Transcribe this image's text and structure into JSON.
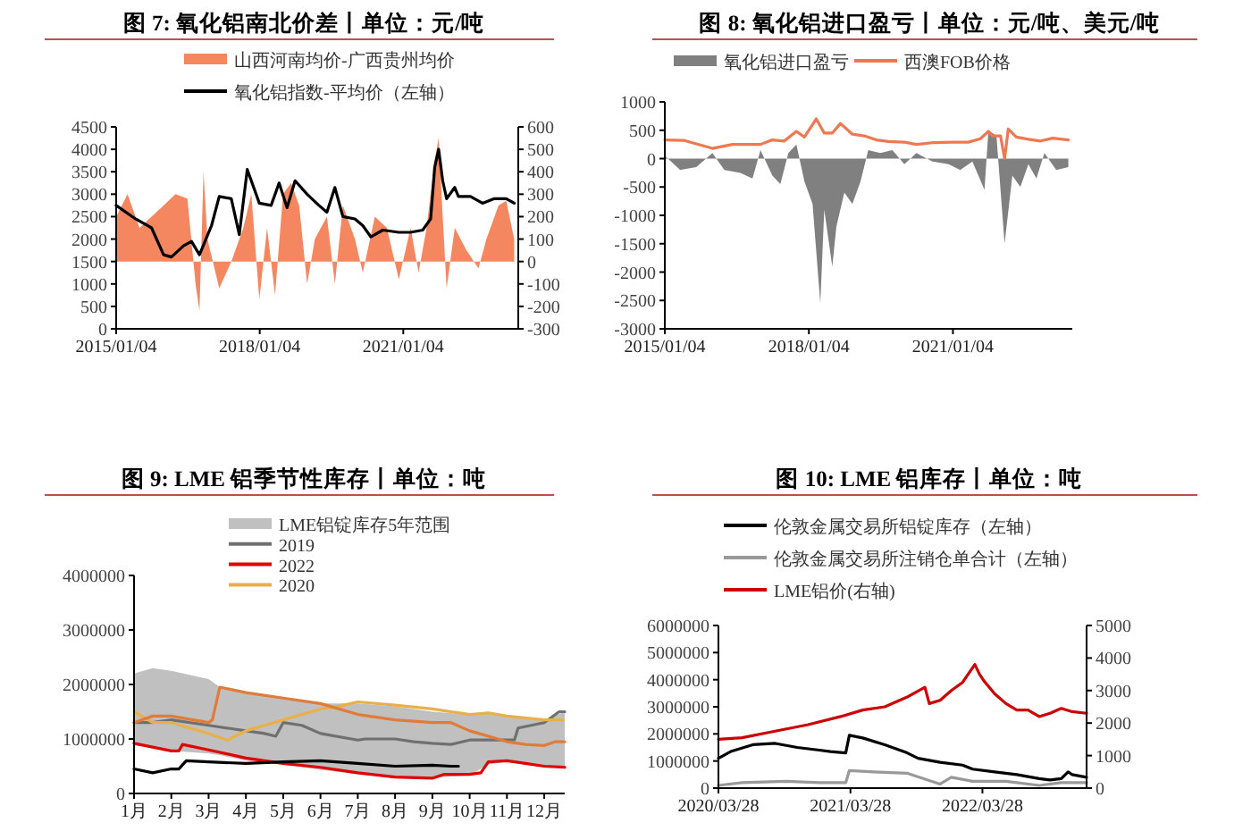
{
  "chart_data": [
    {
      "type": "line",
      "title": "图 7: 氧化铝南北价差丨单位：元/吨",
      "legend": "top",
      "xlim": [
        "2015-01-04",
        "2023-06-01"
      ],
      "xticks": [
        {
          "value": "2015-01-04",
          "label": "2015/01/04"
        },
        {
          "value": "2018-01-04",
          "label": "2018/01/04"
        },
        {
          "value": "2021-01-04",
          "label": "2021/01/04"
        }
      ],
      "ylim": [
        0,
        4500
      ],
      "yticks": [
        0,
        500,
        1000,
        1500,
        2000,
        2500,
        3000,
        3500,
        4000,
        4500
      ],
      "y2lim": [
        -300,
        600
      ],
      "y2ticks": [
        -300,
        -200,
        -100,
        0,
        100,
        200,
        300,
        400,
        500,
        600
      ],
      "series": [
        {
          "name": "山西河南均价-广西贵州均价",
          "type": "area",
          "axis": "y2",
          "color": "#f4875f",
          "x": [
            "2015-01-04",
            "2015-04",
            "2015-07",
            "2015-10",
            "2016-01",
            "2016-04",
            "2016-07",
            "2016-09",
            "2016-10",
            "2016-11",
            "2016-12",
            "2017-03",
            "2017-06",
            "2017-09",
            "2017-11",
            "2018-01",
            "2018-03",
            "2018-05",
            "2018-07",
            "2018-09",
            "2018-11",
            "2019-01",
            "2019-03",
            "2019-06",
            "2019-08",
            "2019-10",
            "2020-01",
            "2020-03",
            "2020-06",
            "2020-09",
            "2020-12",
            "2021-03",
            "2021-05",
            "2021-07",
            "2021-09",
            "2021-10",
            "2021-11",
            "2021-12",
            "2022-02",
            "2022-05",
            "2022-08",
            "2022-10",
            "2023-01",
            "2023-03",
            "2023-05"
          ],
          "values": [
            200,
            300,
            150,
            200,
            250,
            300,
            280,
            -100,
            -220,
            400,
            100,
            -120,
            0,
            150,
            300,
            -170,
            150,
            -150,
            300,
            350,
            250,
            -100,
            100,
            200,
            -100,
            250,
            100,
            -50,
            200,
            150,
            -80,
            150,
            -50,
            150,
            450,
            550,
            200,
            -120,
            150,
            50,
            -30,
            100,
            250,
            270,
            100
          ]
        },
        {
          "name": "氧化铝指数-平均价（左轴）",
          "type": "line",
          "color": "#000000",
          "x": [
            "2015-01-04",
            "2015-06",
            "2015-10",
            "2016-01",
            "2016-03",
            "2016-06",
            "2016-08",
            "2016-10",
            "2017-01",
            "2017-03",
            "2017-06",
            "2017-08",
            "2017-10",
            "2018-01",
            "2018-04",
            "2018-06",
            "2018-08",
            "2018-10",
            "2019-01",
            "2019-04",
            "2019-06",
            "2019-08",
            "2019-10",
            "2020-01",
            "2020-03",
            "2020-05",
            "2020-08",
            "2020-12",
            "2021-03",
            "2021-06",
            "2021-08",
            "2021-09",
            "2021-10",
            "2021-11",
            "2021-12",
            "2022-02",
            "2022-03",
            "2022-06",
            "2022-09",
            "2022-12",
            "2023-03",
            "2023-05"
          ],
          "values": [
            2750,
            2450,
            2250,
            1650,
            1600,
            1850,
            1950,
            1650,
            2300,
            2950,
            2900,
            2100,
            3550,
            2800,
            2750,
            3250,
            2700,
            3300,
            3000,
            2750,
            2600,
            3150,
            2500,
            2450,
            2300,
            2050,
            2200,
            2150,
            2150,
            2200,
            2450,
            3600,
            4000,
            3300,
            2900,
            3150,
            2950,
            2950,
            2800,
            2900,
            2900,
            2800
          ]
        }
      ]
    },
    {
      "type": "line",
      "title": "图 8: 氧化铝进口盈亏丨单位：元/吨、美元/吨",
      "legend": "top",
      "xlim": [
        "2015-01-04",
        "2023-07-01"
      ],
      "xticks": [
        {
          "value": "2015-01-04",
          "label": "2015/01/04"
        },
        {
          "value": "2018-01-04",
          "label": "2018/01/04"
        },
        {
          "value": "2021-01-04",
          "label": "2021/01/04"
        }
      ],
      "ylim": [
        -3000,
        1000
      ],
      "yticks": [
        -3000,
        -2500,
        -2000,
        -1500,
        -1000,
        -500,
        0,
        500,
        1000
      ],
      "series": [
        {
          "name": "氧化铝进口盈亏",
          "type": "area",
          "color": "#808080",
          "x": [
            "2015-01-04",
            "2015-05",
            "2015-09",
            "2016-01",
            "2016-04",
            "2016-08",
            "2016-11",
            "2017-01",
            "2017-04",
            "2017-06",
            "2017-08",
            "2017-10",
            "2017-12",
            "2018-02",
            "2018-04",
            "2018-05",
            "2018-07",
            "2018-08",
            "2018-10",
            "2018-12",
            "2019-02",
            "2019-04",
            "2019-07",
            "2019-10",
            "2020-01",
            "2020-04",
            "2020-08",
            "2020-12",
            "2021-03",
            "2021-06",
            "2021-09",
            "2021-10",
            "2021-12",
            "2022-02",
            "2022-04",
            "2022-06",
            "2022-08",
            "2022-10",
            "2022-12",
            "2023-03",
            "2023-06"
          ],
          "values": [
            50,
            -200,
            -150,
            100,
            -200,
            -250,
            -350,
            150,
            -300,
            -450,
            100,
            250,
            -400,
            -800,
            -2550,
            -900,
            -1900,
            -1200,
            -600,
            -800,
            -400,
            150,
            100,
            150,
            -100,
            100,
            -50,
            -100,
            -200,
            -50,
            -550,
            500,
            400,
            -1500,
            -300,
            -500,
            -100,
            -350,
            100,
            -200,
            -150
          ]
        },
        {
          "name": "西澳FOB价格",
          "type": "line",
          "color": "#f07850",
          "x": [
            "2015-01-04",
            "2015-06",
            "2016-01",
            "2016-06",
            "2017-01",
            "2017-04",
            "2017-07",
            "2017-10",
            "2017-12",
            "2018-03",
            "2018-05",
            "2018-07",
            "2018-09",
            "2018-12",
            "2019-03",
            "2019-06",
            "2019-09",
            "2020-01",
            "2020-04",
            "2020-08",
            "2021-01",
            "2021-05",
            "2021-08",
            "2021-10",
            "2021-11",
            "2022-01",
            "2022-02",
            "2022-03",
            "2022-05",
            "2022-08",
            "2022-11",
            "2023-02",
            "2023-06"
          ],
          "values": [
            330,
            320,
            180,
            250,
            250,
            330,
            310,
            480,
            380,
            700,
            450,
            450,
            620,
            430,
            400,
            330,
            300,
            290,
            250,
            280,
            290,
            290,
            350,
            480,
            400,
            400,
            0,
            520,
            380,
            340,
            310,
            360,
            330
          ]
        }
      ]
    },
    {
      "type": "line",
      "title": "图 9: LME 铝季节性库存丨单位：吨",
      "legend": "top",
      "xlim": [
        1,
        12.55
      ],
      "xticks": [
        {
          "value": 1,
          "label": "1月"
        },
        {
          "value": 2,
          "label": "2月"
        },
        {
          "value": 3,
          "label": "3月"
        },
        {
          "value": 4,
          "label": "4月"
        },
        {
          "value": 5,
          "label": "5月"
        },
        {
          "value": 6,
          "label": "6月"
        },
        {
          "value": 7,
          "label": "7月"
        },
        {
          "value": 8,
          "label": "8月"
        },
        {
          "value": 9,
          "label": "9月"
        },
        {
          "value": 10,
          "label": "10月"
        },
        {
          "value": 11,
          "label": "11月"
        },
        {
          "value": 12,
          "label": "12月"
        }
      ],
      "ylim": [
        0,
        4000000
      ],
      "yticks": [
        0,
        1000000,
        2000000,
        3000000,
        4000000
      ],
      "series": [
        {
          "name": "LME铝锭库存5年范围",
          "type": "area",
          "color": "#c0c0c0",
          "x": [
            1,
            1.5,
            2,
            3,
            3.3,
            4,
            5,
            6,
            7,
            8,
            9,
            10,
            10.5,
            11,
            12,
            12.55
          ],
          "values": [
            null,
            null,
            null,
            null,
            null,
            null,
            null,
            null,
            null,
            null,
            null,
            null,
            null,
            null,
            null,
            null
          ],
          "upper": [
            2200000,
            2300000,
            2250000,
            2100000,
            1950000,
            1850000,
            1750000,
            1650000,
            1650000,
            1600000,
            1500000,
            1450000,
            1480000,
            1400000,
            1350000,
            1500000
          ],
          "lower": [
            900000,
            850000,
            800000,
            750000,
            720000,
            620000,
            550000,
            450000,
            370000,
            300000,
            300000,
            350000,
            550000,
            600000,
            500000,
            500000
          ]
        },
        {
          "name": "2019",
          "color": "#707070",
          "x": [
            1,
            1.5,
            2,
            3,
            4,
            4.5,
            4.8,
            5,
            5.5,
            6,
            7,
            7.2,
            8,
            8.5,
            9,
            9.5,
            10,
            11,
            11.2,
            11.3,
            12,
            12.4,
            12.55
          ],
          "values": [
            1300000,
            1300000,
            1350000,
            1250000,
            1150000,
            1100000,
            1050000,
            1300000,
            1250000,
            1100000,
            980000,
            1000000,
            1000000,
            950000,
            920000,
            900000,
            980000,
            980000,
            980000,
            1200000,
            1300000,
            1500000,
            1500000
          ]
        },
        {
          "name": "2022",
          "color": "#e00000",
          "x": [
            1,
            2,
            2.2,
            2.3,
            3,
            4,
            5,
            6,
            7,
            8,
            9,
            9.3,
            10,
            10.3,
            10.5,
            11,
            11.5,
            12,
            12.55
          ],
          "values": [
            920000,
            780000,
            780000,
            900000,
            800000,
            650000,
            550000,
            480000,
            380000,
            300000,
            280000,
            350000,
            350000,
            380000,
            580000,
            600000,
            550000,
            500000,
            480000
          ]
        },
        {
          "name": "2020",
          "color": "#e8b04a",
          "x": [
            1,
            1.5,
            2,
            3,
            3.5,
            4,
            5,
            6,
            6.5,
            7,
            8,
            9,
            10,
            10.5,
            11,
            12,
            12.5
          ],
          "values": [
            1500000,
            1300000,
            1300000,
            1100000,
            980000,
            1150000,
            1350000,
            1550000,
            1600000,
            1680000,
            1620000,
            1550000,
            1450000,
            1480000,
            1420000,
            1350000,
            1350000
          ]
        },
        {
          "color": "#e07b39",
          "x": [
            1,
            1.5,
            2,
            3,
            3.1,
            3.3,
            4,
            5,
            6,
            7,
            8,
            9,
            9.5,
            10,
            11,
            11.5,
            12,
            12.3,
            12.55
          ],
          "values": [
            1300000,
            1420000,
            1420000,
            1300000,
            1350000,
            1950000,
            1850000,
            1750000,
            1650000,
            1450000,
            1350000,
            1300000,
            1300000,
            1150000,
            950000,
            900000,
            880000,
            950000,
            950000
          ]
        },
        {
          "color": "#000000",
          "x": [
            1,
            1.5,
            2,
            2.2,
            2.4,
            3,
            4,
            5,
            6,
            7,
            8,
            9,
            9.5,
            9.7
          ],
          "values": [
            450000,
            380000,
            450000,
            450000,
            600000,
            580000,
            550000,
            580000,
            600000,
            550000,
            500000,
            520000,
            500000,
            500000
          ]
        }
      ]
    },
    {
      "type": "line",
      "title": "图 10: LME 铝库存丨单位：吨",
      "legend": "top",
      "xlim": [
        "2020-03-28",
        "2023-01-10"
      ],
      "xticks": [
        {
          "value": "2020-03-28",
          "label": "2020/03/28"
        },
        {
          "value": "2021-03-28",
          "label": "2021/03/28"
        },
        {
          "value": "2022-03-28",
          "label": "2022/03/28"
        }
      ],
      "ylim": [
        0,
        6000000
      ],
      "yticks": [
        0,
        1000000,
        2000000,
        3000000,
        4000000,
        5000000,
        6000000
      ],
      "y2lim": [
        0,
        5000
      ],
      "y2ticks": [
        0,
        1000,
        2000,
        3000,
        4000,
        5000
      ],
      "series": [
        {
          "name": "伦敦金属交易所铝锭库存（左轴）",
          "color": "#000000",
          "x": [
            "2020-03-28",
            "2020-05-01",
            "2020-07-01",
            "2020-09-01",
            "2020-11-01",
            "2021-01-01",
            "2021-02-01",
            "2021-03-15",
            "2021-03-25",
            "2021-05-01",
            "2021-07-01",
            "2021-09-01",
            "2021-10-01",
            "2021-12-01",
            "2022-02-01",
            "2022-03-01",
            "2022-05-01",
            "2022-07-01",
            "2022-09-01",
            "2022-10-01",
            "2022-11-01",
            "2022-11-20",
            "2022-12-01",
            "2023-01-10"
          ],
          "values": [
            1100000,
            1350000,
            1600000,
            1650000,
            1500000,
            1400000,
            1350000,
            1300000,
            1950000,
            1850000,
            1600000,
            1300000,
            1100000,
            950000,
            850000,
            700000,
            600000,
            500000,
            350000,
            300000,
            350000,
            600000,
            500000,
            400000
          ]
        },
        {
          "name": "伦敦金属交易所注销仓单合计（左轴）",
          "color": "#999999",
          "x": [
            "2020-03-28",
            "2020-06-01",
            "2020-10-01",
            "2021-01-01",
            "2021-03-15",
            "2021-03-25",
            "2021-06-01",
            "2021-09-01",
            "2021-12-01",
            "2022-01-01",
            "2022-03-01",
            "2022-06-01",
            "2022-09-01",
            "2022-11-01",
            "2023-01-10"
          ],
          "values": [
            100000,
            200000,
            250000,
            200000,
            200000,
            650000,
            600000,
            550000,
            150000,
            400000,
            250000,
            250000,
            100000,
            200000,
            200000
          ]
        },
        {
          "name": "LME铝价(右轴)",
          "color": "#cc0000",
          "axis": "y2",
          "x": [
            "2020-03-28",
            "2020-06-01",
            "2020-09-01",
            "2020-12-01",
            "2021-03-01",
            "2021-05-01",
            "2021-07-01",
            "2021-09-01",
            "2021-10-20",
            "2021-11-01",
            "2021-12-01",
            "2022-01-01",
            "2022-02-01",
            "2022-03-07",
            "2022-03-20",
            "2022-04-01",
            "2022-05-01",
            "2022-06-01",
            "2022-07-01",
            "2022-08-01",
            "2022-09-01",
            "2022-10-01",
            "2022-11-01",
            "2022-12-01",
            "2023-01-10"
          ],
          "values": [
            1500,
            1550,
            1750,
            1950,
            2200,
            2400,
            2500,
            2800,
            3100,
            2600,
            2700,
            3000,
            3250,
            3800,
            3500,
            3300,
            2900,
            2600,
            2400,
            2400,
            2200,
            2300,
            2450,
            2350,
            2300
          ]
        }
      ]
    }
  ]
}
